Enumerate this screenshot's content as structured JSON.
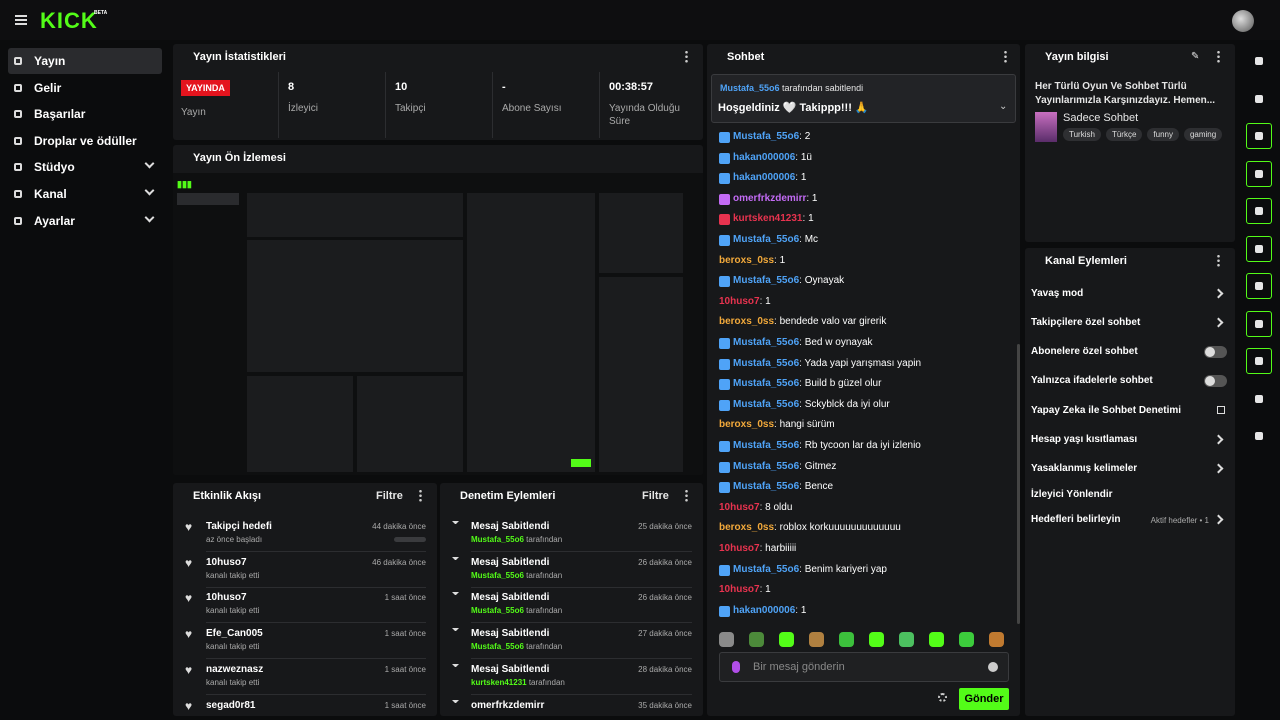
{
  "header": {
    "logo": "KICK",
    "beta": "BETA"
  },
  "sidebar": {
    "items": [
      {
        "label": "Yayın",
        "expandable": false,
        "active": true
      },
      {
        "label": "Gelir",
        "expandable": false
      },
      {
        "label": "Başarılar",
        "expandable": false
      },
      {
        "label": "Droplar ve ödüller",
        "expandable": false
      },
      {
        "label": "Stüdyo",
        "expandable": true
      },
      {
        "label": "Kanal",
        "expandable": true
      },
      {
        "label": "Ayarlar",
        "expandable": true
      }
    ]
  },
  "stats": {
    "title": "Yayın İstatistikleri",
    "badge": "YAYINDA",
    "badge_label": "Yayın",
    "items": [
      {
        "value": "8",
        "label": "İzleyici"
      },
      {
        "value": "10",
        "label": "Takipçi"
      },
      {
        "value": "-",
        "label": "Abone Sayısı"
      },
      {
        "value": "00:38:57",
        "label": "Yayında Olduğu Süre"
      }
    ]
  },
  "preview": {
    "title": "Yayın Ön İzlemesi"
  },
  "activity": {
    "title": "Etkinlik Akışı",
    "filter": "Filtre",
    "items": [
      {
        "name": "Takipçi hedefi",
        "detail": "az önce başladı",
        "time": "44 dakika önce",
        "progress": true
      },
      {
        "name": "10huso7",
        "detail": "kanalı takip etti",
        "time": "46 dakika önce"
      },
      {
        "name": "10huso7",
        "detail": "kanalı takip etti",
        "time": "1 saat önce"
      },
      {
        "name": "Efe_Can005",
        "detail": "kanalı takip etti",
        "time": "1 saat önce"
      },
      {
        "name": "nazweznasz",
        "detail": "kanalı takip etti",
        "time": "1 saat önce"
      },
      {
        "name": "segad0r81",
        "time": "1 saat önce"
      }
    ]
  },
  "moderation": {
    "title": "Denetim Eylemleri",
    "filter": "Filtre",
    "by": "tarafından",
    "items": [
      {
        "action": "Mesaj Sabitlendi",
        "user": "Mustafa_55o6",
        "time": "25 dakika önce"
      },
      {
        "action": "Mesaj Sabitlendi",
        "user": "Mustafa_55o6",
        "time": "26 dakika önce"
      },
      {
        "action": "Mesaj Sabitlendi",
        "user": "Mustafa_55o6",
        "time": "26 dakika önce"
      },
      {
        "action": "Mesaj Sabitlendi",
        "user": "Mustafa_55o6",
        "time": "27 dakika önce"
      },
      {
        "action": "Mesaj Sabitlendi",
        "user": "kurtsken41231",
        "time": "28 dakika önce"
      },
      {
        "action": "omerfrkzdemirr",
        "time": "35 dakika önce"
      }
    ]
  },
  "chat": {
    "title": "Sohbet",
    "separator": ": ",
    "pinned": {
      "user": "Mustafa_55o6",
      "suffix": "tarafından sabitlendi",
      "message": "Hoşgeldiniz 🤍 Takippp!!! 🙏"
    },
    "messages": [
      {
        "user": "Mustafa_55o6",
        "text": "2",
        "color": "#4fa3f7",
        "badge": true
      },
      {
        "user": "hakan000006",
        "text": "1ü",
        "color": "#4fa3f7",
        "badge": true
      },
      {
        "user": "hakan000006",
        "text": "1",
        "color": "#4fa3f7",
        "badge": true
      },
      {
        "user": "omerfrkzdemirr",
        "text": "1",
        "color": "#c36bf5",
        "badge": true
      },
      {
        "user": "kurtsken41231",
        "text": "1",
        "color": "#e8334f",
        "badge": true
      },
      {
        "user": "Mustafa_55o6",
        "text": "Mc",
        "color": "#4fa3f7",
        "badge": true
      },
      {
        "user": "beroxs_0ss",
        "text": "1",
        "color": "#f2a93b",
        "badge": false
      },
      {
        "user": "Mustafa_55o6",
        "text": "Oynayak",
        "color": "#4fa3f7",
        "badge": true
      },
      {
        "user": "10huso7",
        "text": "1",
        "color": "#e8334f",
        "badge": false
      },
      {
        "user": "beroxs_0ss",
        "text": "bendede valo var girerik",
        "color": "#f2a93b",
        "badge": false
      },
      {
        "user": "Mustafa_55o6",
        "text": "Bed w oynayak",
        "color": "#4fa3f7",
        "badge": true
      },
      {
        "user": "Mustafa_55o6",
        "text": "Yada yapi yarışması yapin",
        "color": "#4fa3f7",
        "badge": true
      },
      {
        "user": "Mustafa_55o6",
        "text": "Build b güzel olur",
        "color": "#4fa3f7",
        "badge": true
      },
      {
        "user": "Mustafa_55o6",
        "text": "Sckyblck da iyi olur",
        "color": "#4fa3f7",
        "badge": true
      },
      {
        "user": "beroxs_0ss",
        "text": "hangi sürüm",
        "color": "#f2a93b",
        "badge": false
      },
      {
        "user": "Mustafa_55o6",
        "text": "Rb tycoon lar da iyi izlenio",
        "color": "#4fa3f7",
        "badge": true
      },
      {
        "user": "Mustafa_55o6",
        "text": "Gitmez",
        "color": "#4fa3f7",
        "badge": true
      },
      {
        "user": "Mustafa_55o6",
        "text": "Bence",
        "color": "#4fa3f7",
        "badge": true
      },
      {
        "user": "10huso7",
        "text": "8 oldu",
        "color": "#e8334f",
        "badge": false
      },
      {
        "user": "beroxs_0ss",
        "text": "roblox korkuuuuuuuuuuuuu",
        "color": "#f2a93b",
        "badge": false
      },
      {
        "user": "10huso7",
        "text": "harbiiiii",
        "color": "#e8334f",
        "badge": false
      },
      {
        "user": "Mustafa_55o6",
        "text": "Benim kariyeri yap",
        "color": "#4fa3f7",
        "badge": true
      },
      {
        "user": "10huso7",
        "text": "1",
        "color": "#e8334f",
        "badge": false
      },
      {
        "user": "hakan000006",
        "text": "1",
        "color": "#4fa3f7",
        "badge": true
      }
    ],
    "placeholder": "Bir mesaj gönderin",
    "send": "Gönder"
  },
  "info": {
    "title": "Yayın bilgisi",
    "description": "Her Türlü Oyun Ve Sohbet Türlü Yayınlarımızla Karşınızdayız. Hemen...",
    "category": "Sadece Sohbet",
    "tags": [
      "Turkish",
      "Türkçe",
      "funny",
      "gaming"
    ]
  },
  "actions": {
    "title": "Kanal Eylemleri",
    "items": [
      {
        "label": "Yavaş mod",
        "control": "arrow"
      },
      {
        "label": "Takipçilere özel sohbet",
        "control": "arrow"
      },
      {
        "label": "Abonelere özel sohbet",
        "control": "toggle"
      },
      {
        "label": "Yalnızca ifadelerle sohbet",
        "control": "toggle"
      },
      {
        "label": "Yapay Zeka ile Sohbet Denetimi",
        "control": "link"
      },
      {
        "label": "Hesap yaşı kısıtlaması",
        "control": "arrow"
      },
      {
        "label": "Yasaklanmış kelimeler",
        "control": "arrow"
      },
      {
        "label": "İzleyici Yönlendir"
      },
      {
        "label": "Hedefleri belirleyin",
        "control": "arrow",
        "extra": "Aktif hedefler • 1"
      }
    ]
  }
}
